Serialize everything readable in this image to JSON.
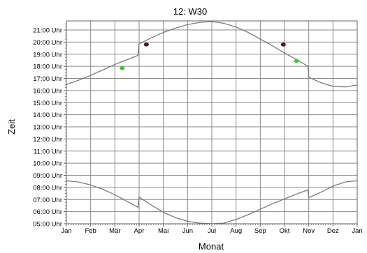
{
  "chart_data": {
    "type": "line",
    "title": "12: W30",
    "xlabel": "Monat",
    "ylabel": "Zeit",
    "x_categories": [
      "Jan",
      "Feb",
      "Mär",
      "Apr",
      "Mai",
      "Jun",
      "Jul",
      "Aug",
      "Sep",
      "Okt",
      "Nov",
      "Dez",
      "Jan"
    ],
    "y_ticks": [
      "05:00 Uhr",
      "06:00 Uhr",
      "07:00 Uhr",
      "08:00 Uhr",
      "09:00 Uhr",
      "10:00 Uhr",
      "11:00 Uhr",
      "12:00 Uhr",
      "13:00 Uhr",
      "14:00 Uhr",
      "15:00 Uhr",
      "16:00 Uhr",
      "17:00 Uhr",
      "18:00 Uhr",
      "19:00 Uhr",
      "20:00 Uhr",
      "21:00 Uhr"
    ],
    "ylim": [
      5,
      21.75
    ],
    "xlim": [
      0,
      12
    ],
    "grid": true,
    "series": [
      {
        "color": "#7b7b7b",
        "x": [
          0,
          0.5,
          1,
          1.5,
          2,
          2.5,
          2.95,
          3.0,
          3.5,
          4,
          4.5,
          5,
          5.5,
          6,
          6.5,
          7,
          7.5,
          8,
          8.5,
          9,
          9.5,
          9.97,
          10.0,
          10.5,
          11,
          11.5,
          12
        ],
        "y": [
          16.5,
          16.85,
          17.25,
          17.7,
          18.15,
          18.55,
          18.9,
          19.85,
          20.35,
          20.8,
          21.15,
          21.45,
          21.63,
          21.7,
          21.55,
          21.25,
          20.8,
          20.25,
          19.7,
          19.1,
          18.55,
          18.0,
          17.1,
          16.65,
          16.35,
          16.3,
          16.45
        ],
        "name": ""
      },
      {
        "color": "#7b7b7b",
        "x": [
          0,
          0.5,
          1,
          1.5,
          2,
          2.5,
          2.95,
          3.0,
          3.5,
          4,
          4.5,
          5,
          5.5,
          6,
          6.5,
          7,
          7.5,
          8,
          8.5,
          9,
          9.5,
          9.97,
          10.0,
          10.5,
          11,
          11.5,
          12
        ],
        "y": [
          8.55,
          8.45,
          8.2,
          7.85,
          7.4,
          6.85,
          6.35,
          7.2,
          6.55,
          5.95,
          5.5,
          5.2,
          5.05,
          5.0,
          5.05,
          5.35,
          5.75,
          6.2,
          6.65,
          7.05,
          7.45,
          7.8,
          7.15,
          7.6,
          8.1,
          8.45,
          8.55
        ],
        "name": ""
      }
    ],
    "markers": [
      {
        "x": 2.3,
        "y": 17.85,
        "color": "#33cc33"
      },
      {
        "x": 3.3,
        "y": 19.8,
        "color": "#5a1018"
      },
      {
        "x": 8.95,
        "y": 19.8,
        "color": "#5a1018"
      },
      {
        "x": 9.5,
        "y": 18.45,
        "color": "#33cc33"
      }
    ]
  }
}
